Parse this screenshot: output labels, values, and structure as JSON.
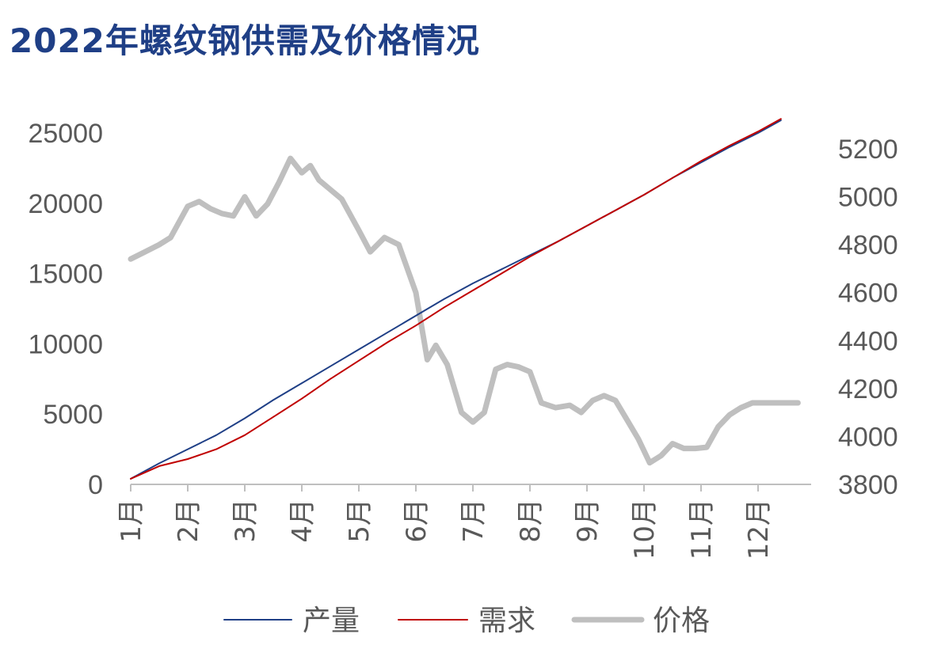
{
  "title": "2022年螺纹钢供需及价格情况",
  "chart_data": {
    "type": "line",
    "title": "2022年螺纹钢供需及价格情况",
    "categories": [
      "1月",
      "2月",
      "3月",
      "4月",
      "5月",
      "6月",
      "7月",
      "8月",
      "9月",
      "10月",
      "11月",
      "12月"
    ],
    "y_left": {
      "lim": [
        0,
        25000
      ],
      "ticks": [
        0,
        5000,
        10000,
        15000,
        20000,
        25000
      ]
    },
    "y_right": {
      "lim": [
        3800,
        5200
      ],
      "ticks": [
        3800,
        4000,
        4200,
        4400,
        4600,
        4800,
        5000,
        5200
      ]
    },
    "legend_position": "bottom",
    "grid": false,
    "series": [
      {
        "name": "产量",
        "axis": "left",
        "color": "#1F3F86",
        "stroke_width": 2,
        "x": [
          1.0,
          1.5,
          2.0,
          2.5,
          3.0,
          3.5,
          4.0,
          4.5,
          5.0,
          5.5,
          6.0,
          6.5,
          7.0,
          7.5,
          8.0,
          8.5,
          9.0,
          9.5,
          10.0,
          10.5,
          11.0,
          11.5,
          12.0,
          12.4
        ],
        "values": [
          400,
          1500,
          2500,
          3500,
          4700,
          6000,
          7200,
          8400,
          9600,
          10800,
          12000,
          13200,
          14300,
          15300,
          16300,
          17300,
          18400,
          19500,
          20600,
          21800,
          22900,
          24000,
          25000,
          25900
        ]
      },
      {
        "name": "需求",
        "axis": "left",
        "color": "#C00000",
        "stroke_width": 2,
        "x": [
          1.0,
          1.5,
          2.0,
          2.5,
          3.0,
          3.5,
          4.0,
          4.5,
          5.0,
          5.5,
          6.0,
          6.5,
          7.0,
          7.5,
          8.0,
          8.5,
          9.0,
          9.5,
          10.0,
          10.5,
          11.0,
          11.5,
          12.0,
          12.4
        ],
        "values": [
          400,
          1300,
          1800,
          2500,
          3500,
          4800,
          6100,
          7500,
          8800,
          10100,
          11300,
          12600,
          13800,
          15000,
          16200,
          17300,
          18400,
          19500,
          20600,
          21800,
          23000,
          24100,
          25100,
          26000
        ]
      },
      {
        "name": "价格",
        "axis": "right",
        "color": "#BFBFBF",
        "stroke_width": 7,
        "x": [
          1.0,
          1.25,
          1.5,
          1.7,
          2.0,
          2.2,
          2.4,
          2.6,
          2.8,
          3.0,
          3.2,
          3.4,
          3.6,
          3.8,
          4.0,
          4.15,
          4.3,
          4.5,
          4.7,
          5.0,
          5.2,
          5.45,
          5.7,
          6.0,
          6.2,
          6.35,
          6.55,
          6.8,
          7.0,
          7.2,
          7.4,
          7.6,
          7.8,
          8.0,
          8.2,
          8.45,
          8.7,
          8.9,
          9.1,
          9.3,
          9.5,
          9.7,
          9.9,
          10.1,
          10.3,
          10.5,
          10.7,
          10.9,
          11.1,
          11.3,
          11.5,
          11.7,
          11.9,
          12.15,
          12.4,
          12.7
        ],
        "values": [
          4740,
          4770,
          4800,
          4830,
          4960,
          4980,
          4950,
          4930,
          4920,
          5000,
          4920,
          4970,
          5060,
          5160,
          5100,
          5130,
          5070,
          5030,
          4990,
          4860,
          4770,
          4830,
          4800,
          4600,
          4320,
          4380,
          4300,
          4100,
          4060,
          4100,
          4280,
          4300,
          4290,
          4270,
          4140,
          4120,
          4130,
          4100,
          4150,
          4170,
          4150,
          4070,
          3990,
          3890,
          3920,
          3970,
          3950,
          3950,
          3955,
          4040,
          4090,
          4120,
          4140,
          4140,
          4140,
          4140
        ]
      }
    ]
  }
}
